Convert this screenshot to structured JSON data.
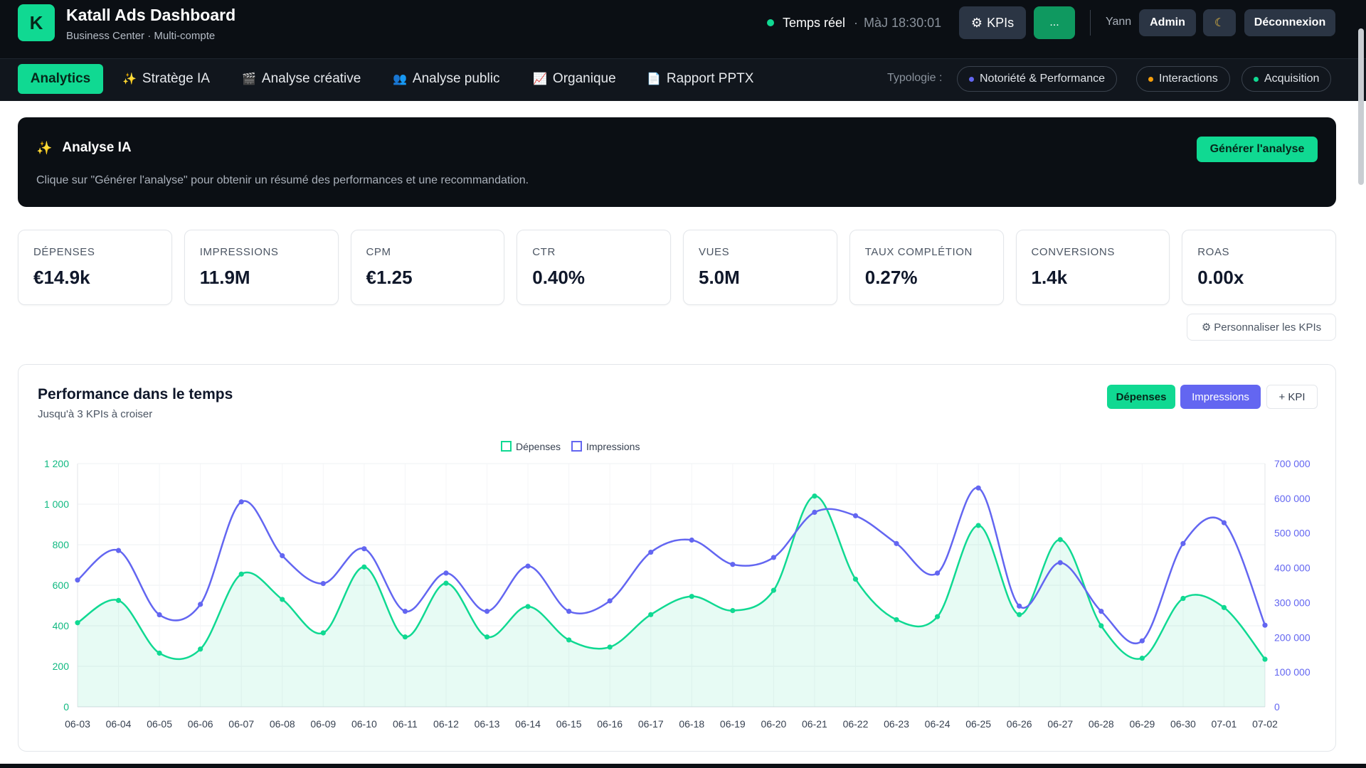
{
  "header": {
    "logo_letter": "K",
    "title": "Katall Ads Dashboard",
    "subtitle": "Business Center · Multi-compte",
    "realtime_label": "Temps réel",
    "update_label": "MàJ 18:30:01",
    "kpis_button": "KPIs",
    "kpis_icon": "gear-icon",
    "more_button": "...",
    "user_name": "Yann",
    "admin_button": "Admin",
    "theme_icon": "moon-icon",
    "logout_button": "Déconnexion"
  },
  "nav": {
    "tabs": [
      {
        "label": "Analytics",
        "icon": ""
      },
      {
        "label": "Stratège IA",
        "icon": "sparkles-icon"
      },
      {
        "label": "Analyse créative",
        "icon": "clapper-icon"
      },
      {
        "label": "Analyse public",
        "icon": "users-icon"
      },
      {
        "label": "Organique",
        "icon": "chart-icon"
      },
      {
        "label": "Rapport PPTX",
        "icon": "document-icon"
      }
    ],
    "typology_label": "Typologie :",
    "typology_pills": [
      {
        "label": "Notoriété & Performance",
        "color": "#6366f1"
      },
      {
        "label": "Interactions",
        "color": "#f59e0b"
      },
      {
        "label": "Acquisition",
        "color": "#10d992"
      }
    ]
  },
  "ai": {
    "title": "Analyse IA",
    "description": "Clique sur \"Générer l'analyse\" pour obtenir un résumé des performances et une recommandation.",
    "button": "Générer l'analyse"
  },
  "kpis": [
    {
      "label": "DÉPENSES",
      "value": "€14.9k"
    },
    {
      "label": "IMPRESSIONS",
      "value": "11.9M"
    },
    {
      "label": "CPM",
      "value": "€1.25"
    },
    {
      "label": "CTR",
      "value": "0.40%"
    },
    {
      "label": "VUES",
      "value": "5.0M"
    },
    {
      "label": "TAUX COMPLÉTION",
      "value": "0.27%"
    },
    {
      "label": "CONVERSIONS",
      "value": "1.4k"
    },
    {
      "label": "ROAS",
      "value": "0.00x"
    }
  ],
  "customize_button": "Personnaliser les KPIs",
  "chart": {
    "title": "Performance dans le temps",
    "subtitle": "Jusqu'à 3 KPIs à croiser",
    "chips": {
      "spend": "Dépenses",
      "impressions": "Impressions",
      "add": "+ KPI"
    }
  },
  "colors": {
    "accent": "#10d992",
    "impressions": "#6366f1",
    "dark": "#0b0f14"
  },
  "chart_data": {
    "type": "line",
    "x": [
      "06-03",
      "06-04",
      "06-05",
      "06-06",
      "06-07",
      "06-08",
      "06-09",
      "06-10",
      "06-11",
      "06-12",
      "06-13",
      "06-14",
      "06-15",
      "06-16",
      "06-17",
      "06-18",
      "06-19",
      "06-20",
      "06-21",
      "06-22",
      "06-23",
      "06-24",
      "06-25",
      "06-26",
      "06-27",
      "06-28",
      "06-29",
      "06-30",
      "07-01",
      "07-02"
    ],
    "series": [
      {
        "name": "Dépenses",
        "axis": "left",
        "color": "#10d992",
        "area": true,
        "values": [
          415,
          525,
          265,
          285,
          655,
          530,
          365,
          690,
          345,
          610,
          345,
          495,
          330,
          295,
          455,
          545,
          475,
          575,
          1040,
          630,
          430,
          445,
          895,
          455,
          825,
          400,
          240,
          535,
          490,
          235
        ]
      },
      {
        "name": "Impressions",
        "axis": "right",
        "color": "#6366f1",
        "area": false,
        "values": [
          365000,
          450000,
          265000,
          295000,
          590000,
          435000,
          355000,
          455000,
          275000,
          385000,
          275000,
          405000,
          275000,
          305000,
          445000,
          480000,
          410000,
          430000,
          560000,
          550000,
          470000,
          385000,
          630000,
          290000,
          415000,
          275000,
          190000,
          470000,
          530000,
          235000
        ]
      }
    ],
    "x_ticks": [
      "06-03",
      "06-04",
      "06-05",
      "06-06",
      "06-07",
      "06-08",
      "06-09",
      "06-10",
      "06-11",
      "06-12",
      "06-13",
      "06-14",
      "06-15",
      "06-16",
      "06-17",
      "06-18",
      "06-19",
      "06-20",
      "06-21",
      "06-22",
      "06-23",
      "06-24",
      "06-25",
      "06-26",
      "06-27",
      "06-28",
      "06-29",
      "06-30",
      "07-01",
      "07-02"
    ],
    "y_left_ticks": [
      "0",
      "200",
      "400",
      "600",
      "800",
      "1 000",
      "1 200"
    ],
    "y_right_ticks": [
      "0",
      "100 000",
      "200 000",
      "300 000",
      "400 000",
      "500 000",
      "600 000",
      "700 000"
    ],
    "ylim_left": [
      0,
      1200
    ],
    "ylim_right": [
      0,
      700000
    ],
    "legend": [
      "Dépenses",
      "Impressions"
    ],
    "legend_position": "top-center",
    "grid": true
  }
}
